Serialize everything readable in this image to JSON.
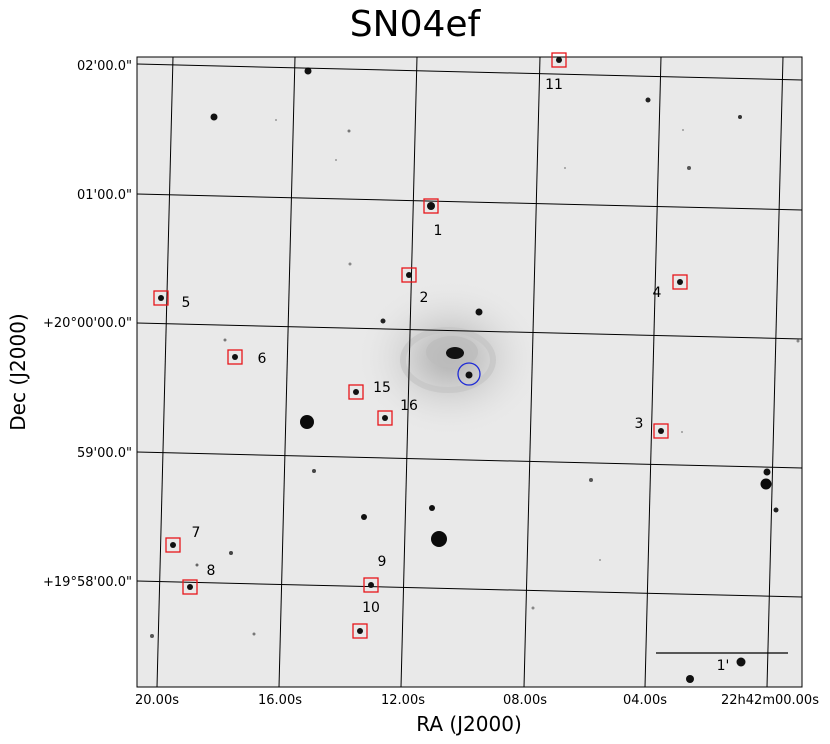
{
  "title": "SN04ef",
  "xlabel": "RA (J2000)",
  "ylabel": "Dec (J2000)",
  "ra_ticks": [
    "20.00s",
    "16.00s",
    "12.00s",
    "08.00s",
    "04.00s",
    "22h42m00.00s"
  ],
  "dec_ticks": [
    "02'00.0\"",
    "01'00.0\"",
    "+20°00'00.0\"",
    "59'00.0\"",
    "+19°58'00.0\""
  ],
  "scale_bar_label": "1'",
  "markers": [
    {
      "label": "1"
    },
    {
      "label": "2"
    },
    {
      "label": "3"
    },
    {
      "label": "4"
    },
    {
      "label": "5"
    },
    {
      "label": "6"
    },
    {
      "label": "7"
    },
    {
      "label": "8"
    },
    {
      "label": "9"
    },
    {
      "label": "10"
    },
    {
      "label": "11"
    },
    {
      "label": "15"
    },
    {
      "label": "16"
    }
  ],
  "colors": {
    "background": "#e9e9e9",
    "marker": "#e8161b",
    "target": "#1f2bd6",
    "grid": "#000000"
  }
}
